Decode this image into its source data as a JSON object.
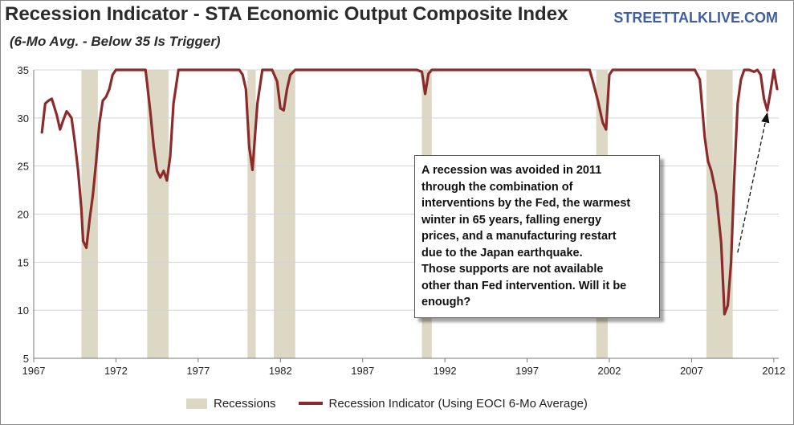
{
  "header": {
    "title": "Recession Indicator - STA Economic Output Composite Index",
    "subtitle": "(6-Mo Avg. - Below 35 Is Trigger)",
    "brand": "STREETTALKLIVE.COM"
  },
  "annotation": {
    "lines": [
      "A recession was avoided in 2011",
      "through the combination of",
      "interventions by the Fed, the warmest",
      "winter in 65 years, falling energy",
      "prices, and a manufacturing restart",
      "due to the Japan earthquake.",
      "Those supports are not available",
      "other than Fed intervention.  Will it be",
      "enough?"
    ]
  },
  "legend": {
    "recessions_label": "Recessions",
    "indicator_label": "Recession Indicator (Using EOCI 6-Mo Average)"
  },
  "colors": {
    "line": "#8b2b2b",
    "recession_band": "#ddd8c4",
    "grid": "#d4d4d4",
    "brand": "#3f5fa0"
  },
  "chart_data": {
    "type": "line",
    "title": "Recession Indicator - STA Economic Output Composite Index",
    "subtitle": "(6-Mo Avg. - Below 35 Is Trigger)",
    "xlabel": "",
    "ylabel": "",
    "xlim": [
      1967,
      2012.3
    ],
    "ylim": [
      5,
      35
    ],
    "x_ticks": [
      "1967",
      "1972",
      "1977",
      "1982",
      "1987",
      "1992",
      "1997",
      "2002",
      "2007",
      "2012"
    ],
    "y_ticks": [
      "5",
      "10",
      "15",
      "20",
      "25",
      "30",
      "35"
    ],
    "grid": "horizontal",
    "legend_position": "bottom",
    "recessions": [
      [
        1969.9,
        1970.9
      ],
      [
        1973.9,
        1975.2
      ],
      [
        1980.0,
        1980.5
      ],
      [
        1981.6,
        1982.9
      ],
      [
        1990.6,
        1991.2
      ],
      [
        2001.2,
        2001.9
      ],
      [
        2007.9,
        2009.5
      ]
    ],
    "series": [
      {
        "name": "Recession Indicator (Using EOCI 6-Mo Average)",
        "x": [
          1967.5,
          1967.7,
          1967.9,
          1968.1,
          1968.4,
          1968.6,
          1968.8,
          1969.0,
          1969.1,
          1969.3,
          1969.5,
          1969.7,
          1969.9,
          1970.0,
          1970.2,
          1970.4,
          1970.6,
          1970.8,
          1971.0,
          1971.2,
          1971.4,
          1971.6,
          1971.8,
          1972.0,
          1972.2,
          1973.0,
          1973.8,
          1973.9,
          1974.1,
          1974.3,
          1974.5,
          1974.7,
          1974.9,
          1975.1,
          1975.3,
          1975.5,
          1975.8,
          1976.0,
          1976.5,
          1979.5,
          1979.7,
          1979.9,
          1980.1,
          1980.3,
          1980.6,
          1980.9,
          1981.2,
          1981.5,
          1981.8,
          1982.0,
          1982.2,
          1982.4,
          1982.6,
          1982.9,
          1983.2,
          1990.3,
          1990.6,
          1990.8,
          1991.0,
          1991.2,
          1991.5,
          2000.8,
          2001.0,
          2001.3,
          2001.6,
          2001.8,
          2002.0,
          2002.2,
          2007.2,
          2007.5,
          2007.8,
          2008.0,
          2008.2,
          2008.5,
          2008.8,
          2009.0,
          2009.2,
          2009.4,
          2009.6,
          2009.8,
          2010.0,
          2010.2,
          2010.5,
          2010.8,
          2011.0,
          2011.2,
          2011.4,
          2011.6,
          2011.8,
          2012.0,
          2012.2
        ],
        "values": [
          28.5,
          31.5,
          31.8,
          32.0,
          30.3,
          28.8,
          29.8,
          30.7,
          30.5,
          30.0,
          27.5,
          24.5,
          20.5,
          17.2,
          16.5,
          19.5,
          22.0,
          25.5,
          29.5,
          31.8,
          32.2,
          33.0,
          34.5,
          35.0,
          35.0,
          35.0,
          35.0,
          33.5,
          30.5,
          27.0,
          24.5,
          23.8,
          24.5,
          23.5,
          26.0,
          31.5,
          35.0,
          35.0,
          35.0,
          35.0,
          34.5,
          33.0,
          27.0,
          24.6,
          31.5,
          35.0,
          35.0,
          35.0,
          33.8,
          31.0,
          30.8,
          33.0,
          34.5,
          35.0,
          35.0,
          35.0,
          34.8,
          32.5,
          34.6,
          35.0,
          35.0,
          35.0,
          33.8,
          31.8,
          29.5,
          28.8,
          34.5,
          35.0,
          35.0,
          34.0,
          28.0,
          25.5,
          24.5,
          22.0,
          17.0,
          9.6,
          10.5,
          15.0,
          24.0,
          31.5,
          34.0,
          35.0,
          35.0,
          34.8,
          35.0,
          34.5,
          32.0,
          30.8,
          32.8,
          35.0,
          33.0
        ]
      }
    ],
    "annotation_arrow": {
      "from": [
        2009.8,
        16.0
      ],
      "to": [
        2011.6,
        30.5
      ]
    }
  }
}
